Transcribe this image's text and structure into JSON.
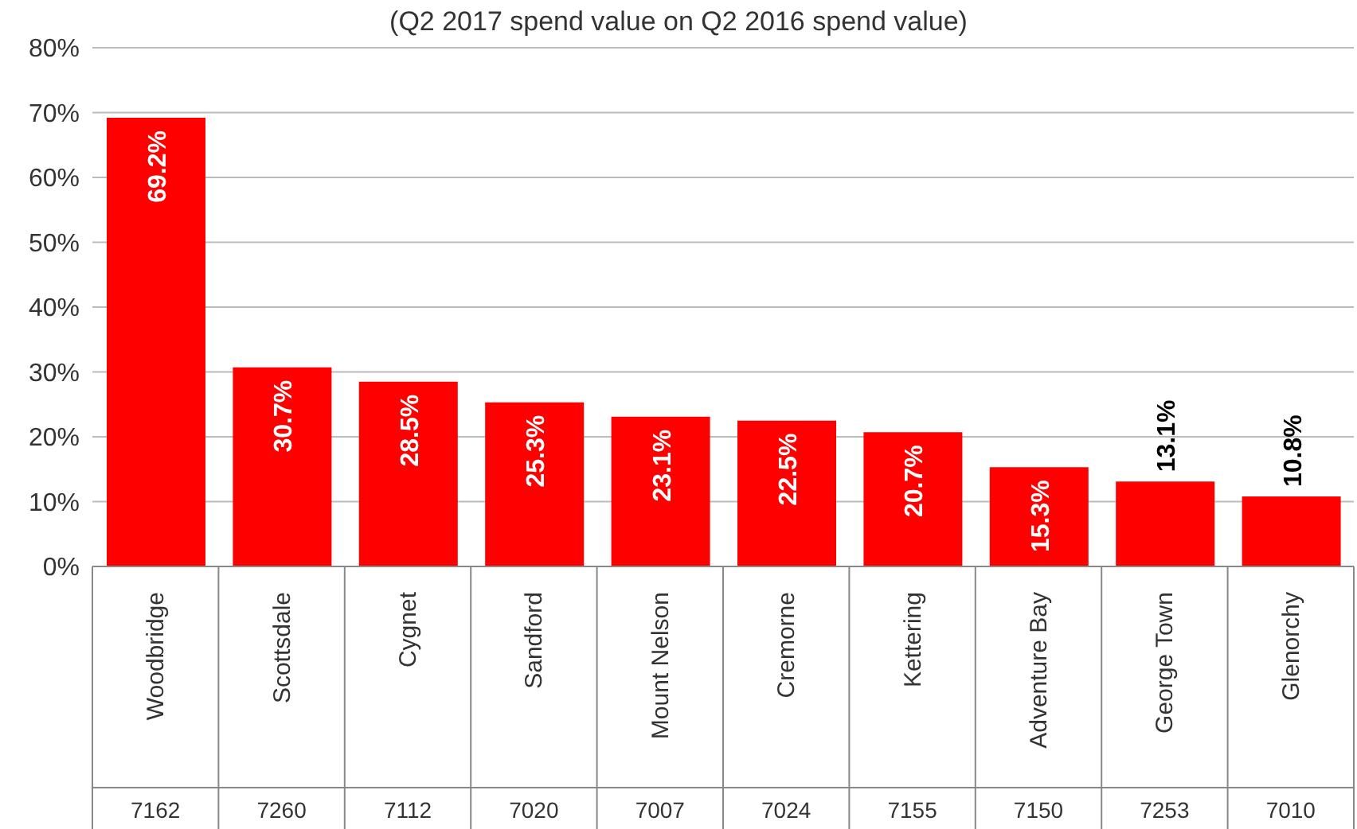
{
  "chart_data": {
    "type": "bar",
    "title": "(Q2 2017 spend value on Q2 2016 spend value)",
    "categories": [
      "Woodbridge\n7162",
      "Scottsdale\n7260",
      "Cygnet\n7112",
      "Sandford\n7020",
      "Mount Nelson\n7007",
      "Cremorne\n7024",
      "Kettering\n7155",
      "Adventure Bay\n7150",
      "George Town\n7253",
      "Glenorchy\n7010"
    ],
    "values": [
      69.2,
      30.7,
      28.5,
      25.3,
      23.1,
      22.5,
      20.7,
      15.3,
      13.1,
      10.8
    ],
    "value_labels": [
      "69.2%",
      "30.7%",
      "28.5%",
      "25.3%",
      "23.1%",
      "22.5%",
      "20.7%",
      "15.3%",
      "13.1%",
      "10.8%"
    ],
    "color": "#ff0000",
    "ylim": [
      0,
      80
    ],
    "yticks": [
      {
        "value": 0,
        "label": "0%"
      },
      {
        "value": 10,
        "label": "10%"
      },
      {
        "value": 20,
        "label": "20%"
      },
      {
        "value": 30,
        "label": "30%"
      },
      {
        "value": 40,
        "label": "40%"
      },
      {
        "value": 50,
        "label": "50%"
      },
      {
        "value": 60,
        "label": "60%"
      },
      {
        "value": 70,
        "label": "70%"
      },
      {
        "value": 80,
        "label": "80%"
      }
    ],
    "grid": "y"
  }
}
